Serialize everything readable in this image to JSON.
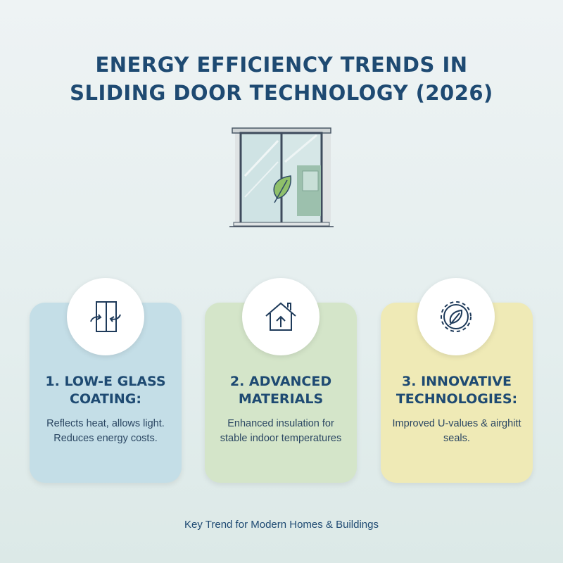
{
  "title": {
    "line1": "ENERGY EFFICIENCY TRENDS IN",
    "line2": "SLIDING DOOR TECHNOLOGY (2026)"
  },
  "cards": [
    {
      "heading": "1. LOW-E GLASS COATING:",
      "text": "Reflects heat, allows light. Reduces energy costs.",
      "icon": "window-arrows-icon",
      "color": "#c4dee7"
    },
    {
      "heading": "2. ADVANCED MATERIALS",
      "text": "Enhanced insulation for stable indoor temperatures",
      "icon": "house-arrow-icon",
      "color": "#d4e5c9"
    },
    {
      "heading": "3. INNOVATIVE TECHNOLOGIES:",
      "text": "Improved U-values & airghitt seals.",
      "icon": "gear-leaf-icon",
      "color": "#efeab6"
    }
  ],
  "footer": "Key Trend for Modern Homes & Buildings"
}
